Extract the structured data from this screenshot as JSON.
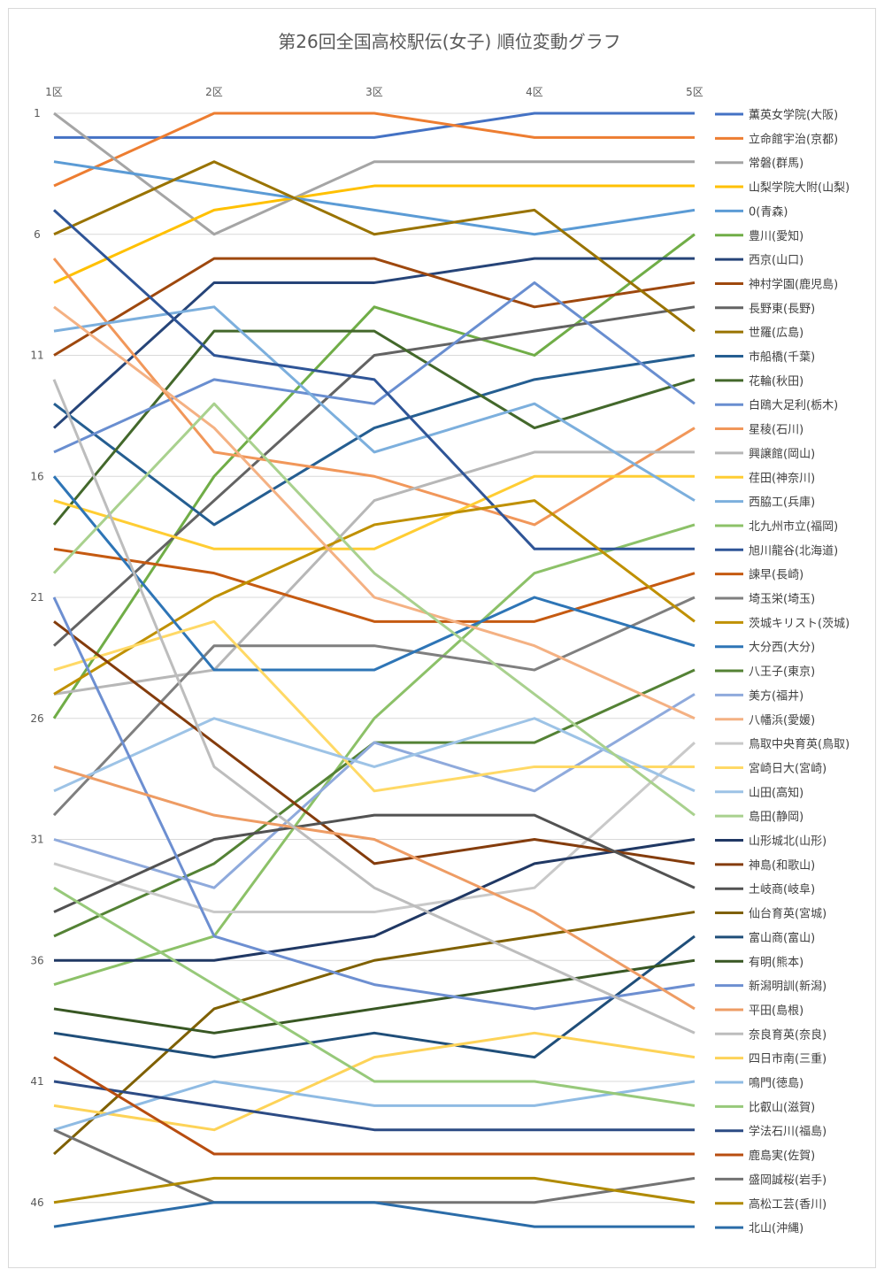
{
  "chart_data": {
    "type": "line",
    "title": "第26回全国高校駅伝(女子) 順位変動グラフ",
    "categories": [
      "1区",
      "2区",
      "3区",
      "4区",
      "5区"
    ],
    "y_ticks": [
      1,
      6,
      11,
      16,
      21,
      26,
      31,
      36,
      41,
      46
    ],
    "ylim": [
      47,
      1
    ],
    "y_inverted": true,
    "grid": true,
    "legend_position": "right",
    "series": [
      {
        "name": "薫英女学院(大阪)",
        "color": "#4472c4",
        "values": [
          2,
          2,
          2,
          1,
          1
        ]
      },
      {
        "name": "立命館宇治(京都)",
        "color": "#ed7d31",
        "values": [
          4,
          1,
          1,
          2,
          2
        ]
      },
      {
        "name": "常磐(群馬)",
        "color": "#a5a5a5",
        "values": [
          1,
          6,
          3,
          3,
          3
        ]
      },
      {
        "name": "山梨学院大附(山梨)",
        "color": "#ffc000",
        "values": [
          8,
          5,
          4,
          4,
          4
        ]
      },
      {
        "name": "0(青森)",
        "color": "#5b9bd5",
        "values": [
          3,
          4,
          5,
          6,
          5
        ]
      },
      {
        "name": "豊川(愛知)",
        "color": "#70ad47",
        "values": [
          26,
          16,
          9,
          11,
          6
        ]
      },
      {
        "name": "西京(山口)",
        "color": "#264478",
        "values": [
          14,
          8,
          8,
          7,
          7
        ]
      },
      {
        "name": "神村学園(鹿児島)",
        "color": "#9e480e",
        "values": [
          11,
          7,
          7,
          9,
          8
        ]
      },
      {
        "name": "長野東(長野)",
        "color": "#636363",
        "values": [
          23,
          17,
          11,
          10,
          9
        ]
      },
      {
        "name": "世羅(広島)",
        "color": "#997300",
        "values": [
          6,
          3,
          6,
          5,
          10
        ]
      },
      {
        "name": "市船橋(千葉)",
        "color": "#255e91",
        "values": [
          13,
          18,
          14,
          12,
          11
        ]
      },
      {
        "name": "花輪(秋田)",
        "color": "#43682b",
        "values": [
          18,
          10,
          10,
          14,
          12
        ]
      },
      {
        "name": "白鴎大足利(栃木)",
        "color": "#698ed0",
        "values": [
          15,
          12,
          13,
          8,
          13
        ]
      },
      {
        "name": "星稜(石川)",
        "color": "#f1975a",
        "values": [
          7,
          15,
          16,
          18,
          14
        ]
      },
      {
        "name": "興譲館(岡山)",
        "color": "#b7b7b7",
        "values": [
          25,
          24,
          17,
          15,
          15
        ]
      },
      {
        "name": "荏田(神奈川)",
        "color": "#ffcd33",
        "values": [
          17,
          19,
          19,
          16,
          16
        ]
      },
      {
        "name": "西脇工(兵庫)",
        "color": "#7cafdd",
        "values": [
          10,
          9,
          15,
          13,
          17
        ]
      },
      {
        "name": "北九州市立(福岡)",
        "color": "#8cc168",
        "values": [
          37,
          35,
          26,
          20,
          18
        ]
      },
      {
        "name": "旭川龍谷(北海道)",
        "color": "#2f5597",
        "values": [
          5,
          11,
          12,
          19,
          19
        ]
      },
      {
        "name": "諫早(長崎)",
        "color": "#c55a11",
        "values": [
          19,
          20,
          22,
          22,
          20
        ]
      },
      {
        "name": "埼玉栄(埼玉)",
        "color": "#7f7f7f",
        "values": [
          30,
          23,
          23,
          24,
          21
        ]
      },
      {
        "name": "茨城キリスト(茨城)",
        "color": "#bf9000",
        "values": [
          25,
          21,
          18,
          17,
          22
        ]
      },
      {
        "name": "大分西(大分)",
        "color": "#2e75b6",
        "values": [
          16,
          24,
          24,
          21,
          23
        ]
      },
      {
        "name": "八王子(東京)",
        "color": "#548235",
        "values": [
          35,
          32,
          27,
          27,
          24
        ]
      },
      {
        "name": "美方(福井)",
        "color": "#8faadc",
        "values": [
          31,
          33,
          27,
          29,
          25
        ]
      },
      {
        "name": "八幡浜(愛媛)",
        "color": "#f4b183",
        "values": [
          9,
          14,
          21,
          23,
          26
        ]
      },
      {
        "name": "鳥取中央育英(鳥取)",
        "color": "#c9c9c9",
        "values": [
          32,
          34,
          34,
          33,
          27
        ]
      },
      {
        "name": "宮崎日大(宮崎)",
        "color": "#ffd966",
        "values": [
          24,
          22,
          29,
          28,
          28
        ]
      },
      {
        "name": "山田(高知)",
        "color": "#9dc3e6",
        "values": [
          29,
          26,
          28,
          26,
          29
        ]
      },
      {
        "name": "島田(静岡)",
        "color": "#a9d18e",
        "values": [
          20,
          13,
          20,
          25,
          30
        ]
      },
      {
        "name": "山形城北(山形)",
        "color": "#203864",
        "values": [
          36,
          36,
          35,
          32,
          31
        ]
      },
      {
        "name": "神島(和歌山)",
        "color": "#843c0c",
        "values": [
          22,
          27,
          32,
          31,
          32
        ]
      },
      {
        "name": "土岐商(岐阜)",
        "color": "#525252",
        "values": [
          34,
          31,
          30,
          30,
          33
        ]
      },
      {
        "name": "仙台育英(宮城)",
        "color": "#7f6000",
        "values": [
          44,
          38,
          36,
          35,
          34
        ]
      },
      {
        "name": "富山商(富山)",
        "color": "#1f4e79",
        "values": [
          39,
          40,
          39,
          40,
          35
        ]
      },
      {
        "name": "有明(熊本)",
        "color": "#385723",
        "values": [
          38,
          39,
          38,
          37,
          36
        ]
      },
      {
        "name": "新潟明訓(新潟)",
        "color": "#6d8fd1",
        "values": [
          21,
          35,
          37,
          38,
          37
        ]
      },
      {
        "name": "平田(島根)",
        "color": "#ee9c64",
        "values": [
          28,
          30,
          31,
          34,
          38
        ]
      },
      {
        "name": "奈良育英(奈良)",
        "color": "#bdbdbd",
        "values": [
          12,
          28,
          33,
          36,
          39
        ]
      },
      {
        "name": "四日市南(三重)",
        "color": "#fdd358",
        "values": [
          42,
          43,
          40,
          39,
          40
        ]
      },
      {
        "name": "鳴門(徳島)",
        "color": "#8fbbe3",
        "values": [
          43,
          41,
          42,
          42,
          41
        ]
      },
      {
        "name": "比叡山(滋賀)",
        "color": "#97c97a",
        "values": [
          33,
          37,
          41,
          41,
          42
        ]
      },
      {
        "name": "学法石川(福島)",
        "color": "#2c4b84",
        "values": [
          41,
          42,
          43,
          43,
          43
        ]
      },
      {
        "name": "鹿島実(佐賀)",
        "color": "#b84d10",
        "values": [
          40,
          44,
          44,
          44,
          44
        ]
      },
      {
        "name": "盛岡誠桜(岩手)",
        "color": "#737373",
        "values": [
          43,
          46,
          46,
          46,
          45
        ]
      },
      {
        "name": "高松工芸(香川)",
        "color": "#b08a00",
        "values": [
          46,
          45,
          45,
          45,
          46
        ]
      },
      {
        "name": "北山(沖縄)",
        "color": "#2b6ca8",
        "values": [
          47,
          46,
          46,
          47,
          47
        ]
      }
    ]
  }
}
